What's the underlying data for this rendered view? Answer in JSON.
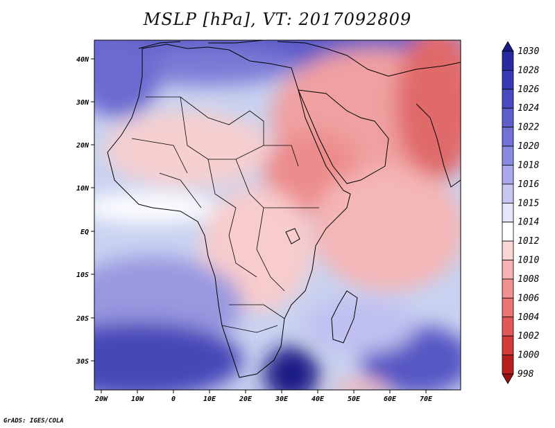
{
  "title": "MSLP [hPa], VT: 2017092809",
  "credit": "GrADS: IGES/COLA",
  "map": {
    "lon_labels": [
      "20W",
      "10W",
      "0",
      "10E",
      "20E",
      "30E",
      "40E",
      "50E",
      "60E",
      "70E"
    ],
    "lat_labels": [
      "40N",
      "30N",
      "20N",
      "10N",
      "EQ",
      "10S",
      "20S",
      "30S"
    ],
    "background_color": "#c8d2f0"
  },
  "colorbar": {
    "levels": [
      "1030",
      "1028",
      "1026",
      "1024",
      "1022",
      "1020",
      "1018",
      "1016",
      "1015",
      "1014",
      "1012",
      "1010",
      "1008",
      "1006",
      "1004",
      "1002",
      "1000",
      "998"
    ],
    "colors": [
      "#1c1c86",
      "#2a2aa0",
      "#3838b2",
      "#4a4ac0",
      "#5e5ecc",
      "#7272d6",
      "#8a8ae0",
      "#a8a8ea",
      "#c8c8f4",
      "#e6e6fa",
      "#ffffff",
      "#fbd6d6",
      "#f6b4b4",
      "#f09292",
      "#e87474",
      "#e05858",
      "#d43c3c",
      "#b81e1e",
      "#9a1010"
    ]
  }
}
